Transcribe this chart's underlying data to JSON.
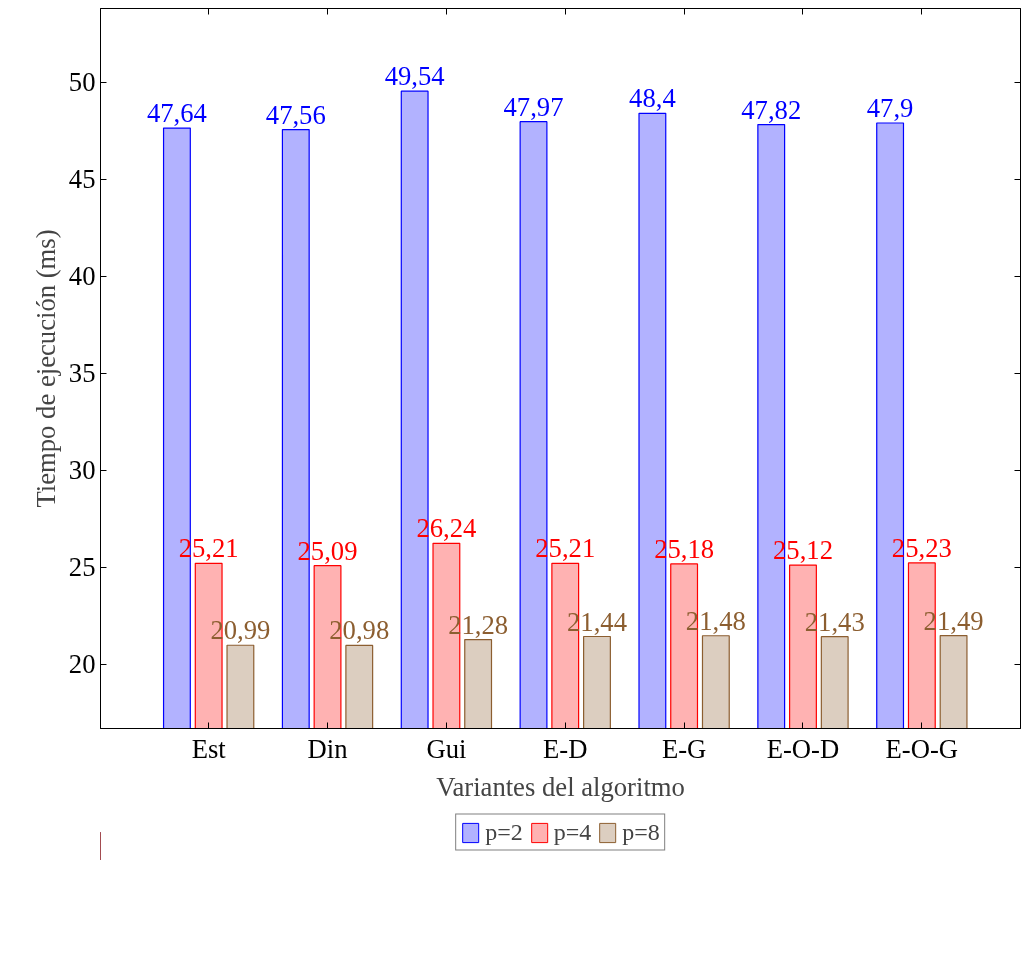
{
  "chart_data": {
    "type": "bar",
    "xlabel": "Variantes del algoritmo",
    "ylabel": "Tiempo de ejecución (ms)",
    "categories": [
      "Est",
      "Din",
      "Gui",
      "E-D",
      "E-G",
      "E-O-D",
      "E-O-G"
    ],
    "series": [
      {
        "name": "p=2",
        "color": "#0000ff",
        "values": [
          47.64,
          47.56,
          49.54,
          47.97,
          48.4,
          47.82,
          47.9
        ],
        "value_labels": [
          "47,64",
          "47,56",
          "49,54",
          "47,97",
          "48,4",
          "47,82",
          "47,9"
        ]
      },
      {
        "name": "p=4",
        "color": "#ff0000",
        "values": [
          25.21,
          25.09,
          26.24,
          25.21,
          25.18,
          25.12,
          25.23
        ],
        "value_labels": [
          "25,21",
          "25,09",
          "26,24",
          "25,21",
          "25,18",
          "25,12",
          "25,23"
        ]
      },
      {
        "name": "p=8",
        "color": "#8c5e30",
        "values": [
          20.99,
          20.98,
          21.28,
          21.44,
          21.48,
          21.43,
          21.49
        ],
        "value_labels": [
          "20,99",
          "20,98",
          "21,28",
          "21,44",
          "21,48",
          "21,43",
          "21,49"
        ]
      }
    ],
    "ylim": [
      16.7,
      53.8
    ],
    "yticks": [
      20,
      25,
      30,
      35,
      40,
      45,
      50
    ],
    "grid": false,
    "legend": "bottom"
  }
}
